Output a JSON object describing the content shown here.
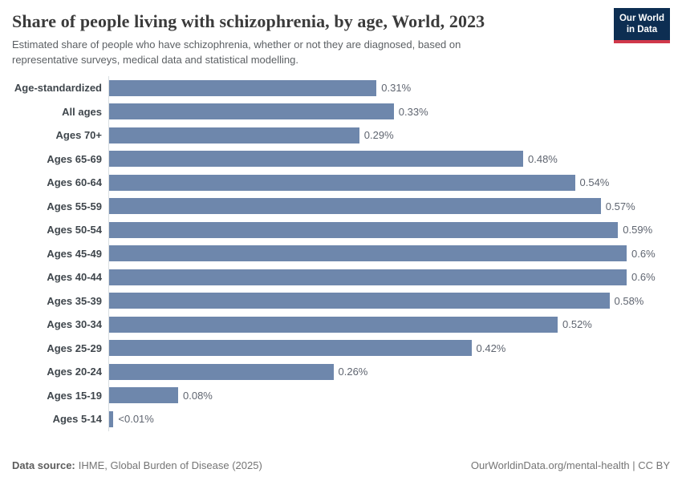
{
  "header": {
    "title": "Share of people living with schizophrenia, by age, World, 2023",
    "subtitle": "Estimated share of people who have schizophrenia, whether or not they are diagnosed, based on representative surveys, medical data and statistical modelling.",
    "logo": {
      "line1": "Our World",
      "line2": "in Data"
    }
  },
  "chart_data": {
    "type": "bar",
    "orientation": "horizontal",
    "title": "Share of people living with schizophrenia, by age, World, 2023",
    "xlabel": "",
    "ylabel": "",
    "unit": "%",
    "xlim": [
      0,
      0.6
    ],
    "grid": false,
    "legend": "none",
    "bar_color": "#6e87ac",
    "categories": [
      "Age-standardized",
      "All ages",
      "Ages 70+",
      "Ages 65-69",
      "Ages 60-64",
      "Ages 55-59",
      "Ages 50-54",
      "Ages 45-49",
      "Ages 40-44",
      "Ages 35-39",
      "Ages 30-34",
      "Ages 25-29",
      "Ages 20-24",
      "Ages 15-19",
      "Ages 5-14"
    ],
    "values": [
      0.31,
      0.33,
      0.29,
      0.48,
      0.54,
      0.57,
      0.59,
      0.6,
      0.6,
      0.58,
      0.52,
      0.42,
      0.26,
      0.08,
      0.005
    ],
    "value_labels": [
      "0.31%",
      "0.33%",
      "0.29%",
      "0.48%",
      "0.54%",
      "0.57%",
      "0.59%",
      "0.6%",
      "0.6%",
      "0.58%",
      "0.52%",
      "0.42%",
      "0.26%",
      "0.08%",
      "<0.01%"
    ]
  },
  "footer": {
    "source_label": "Data source:",
    "source_text": "IHME, Global Burden of Disease (2025)",
    "right_text": "OurWorldinData.org/mental-health | CC BY"
  },
  "colors": {
    "bar": "#6e87ac",
    "logo_navy": "#0d2e52",
    "logo_red": "#d0384a",
    "axis_line": "#dadfe2"
  }
}
